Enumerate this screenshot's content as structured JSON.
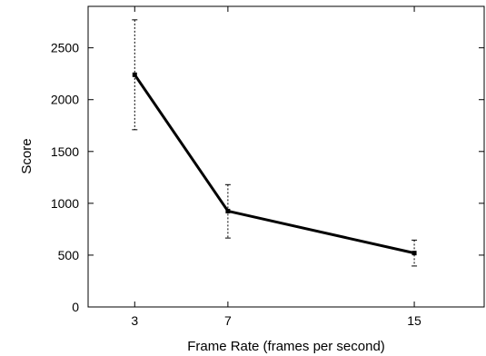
{
  "chart_data": {
    "type": "line",
    "title": "",
    "xlabel": "Frame Rate (frames per second)",
    "ylabel": "Score",
    "x": [
      3,
      7,
      15
    ],
    "xticks": [
      3,
      7,
      15
    ],
    "xlim": [
      1,
      18
    ],
    "yticks": [
      0,
      500,
      1000,
      1500,
      2000,
      2500
    ],
    "ylim": [
      0,
      2900
    ],
    "grid": false,
    "legend": "none",
    "series": [
      {
        "values": [
          2240,
          925,
          520
        ],
        "error_low": [
          1710,
          665,
          395
        ],
        "error_high": [
          2770,
          1180,
          645
        ],
        "color": "#000000"
      }
    ]
  }
}
